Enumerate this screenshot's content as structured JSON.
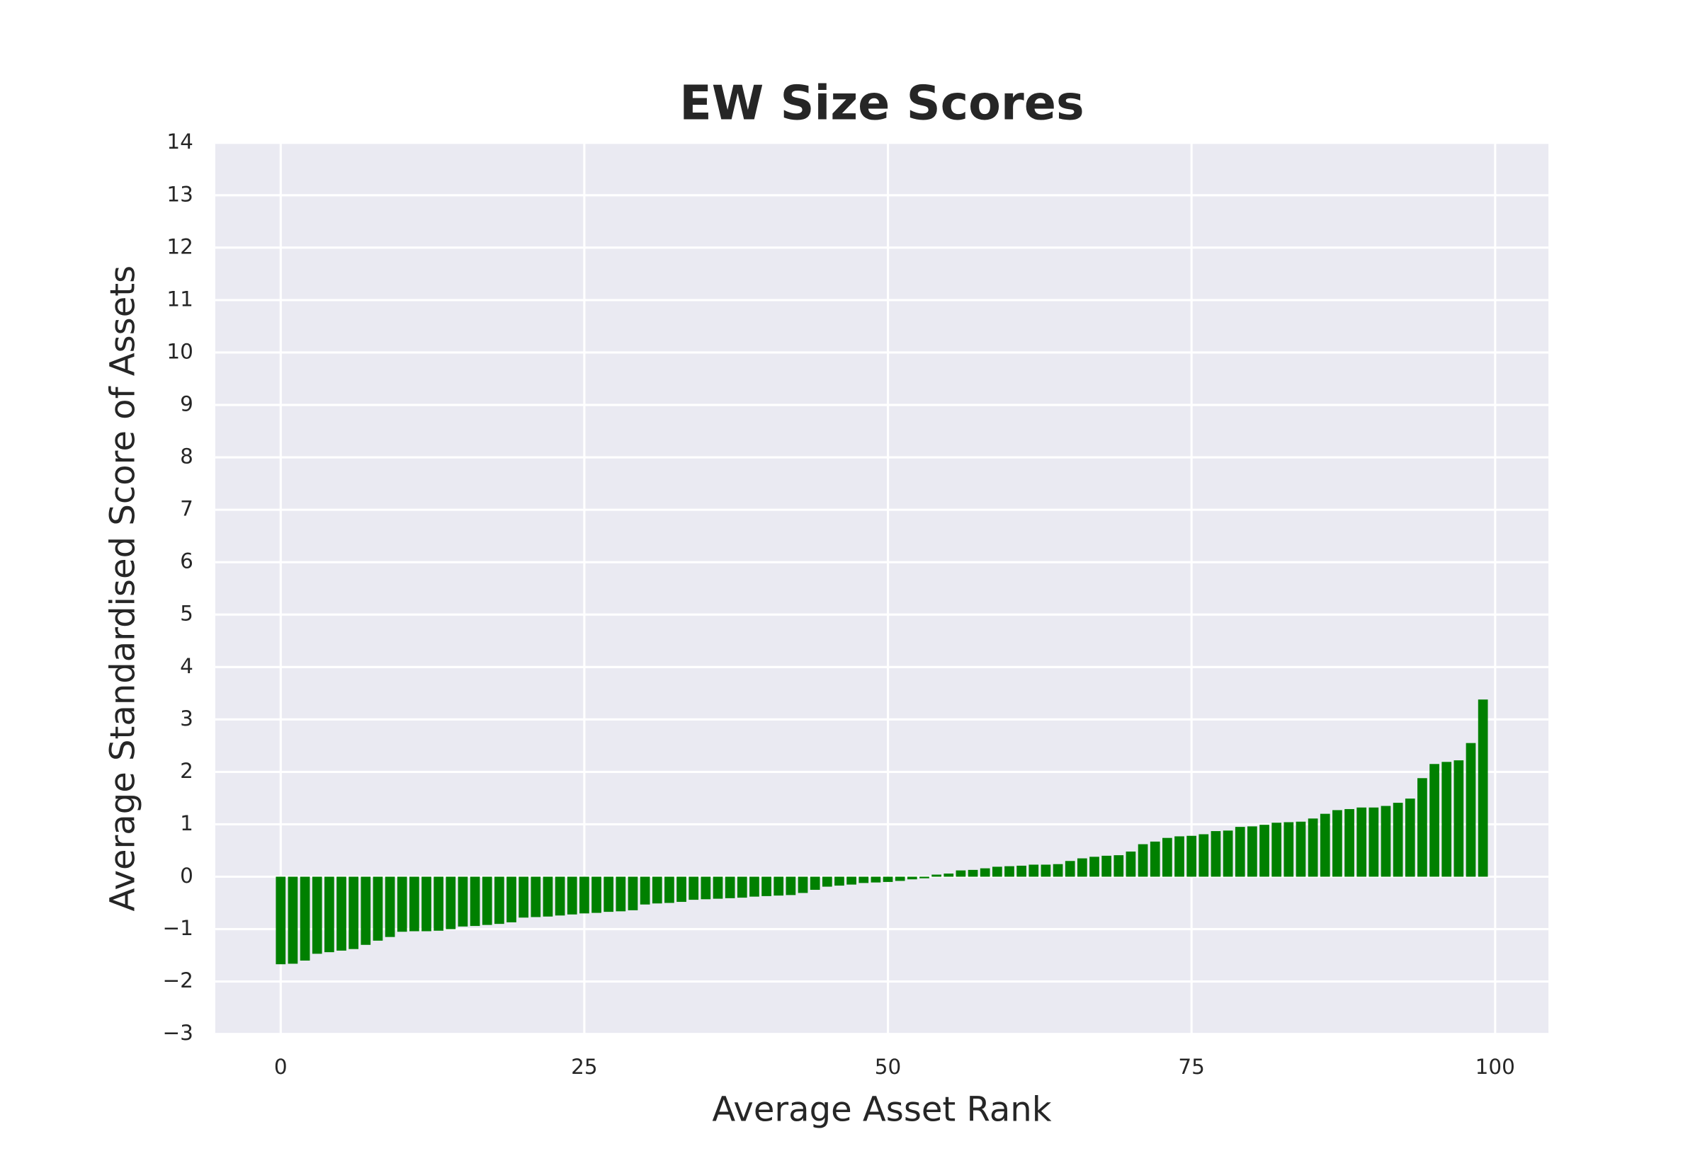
{
  "chart_data": {
    "type": "bar",
    "title": "EW Size Scores",
    "x_label": "Average Asset Rank",
    "y_label": "Average Standardised Score of Assets",
    "color": "#008000",
    "grid": true,
    "x": [
      0,
      1,
      2,
      3,
      4,
      5,
      6,
      7,
      8,
      9,
      10,
      11,
      12,
      13,
      14,
      15,
      16,
      17,
      18,
      19,
      20,
      21,
      22,
      23,
      24,
      25,
      26,
      27,
      28,
      29,
      30,
      31,
      32,
      33,
      34,
      35,
      36,
      37,
      38,
      39,
      40,
      41,
      42,
      43,
      44,
      45,
      46,
      47,
      48,
      49,
      50,
      51,
      52,
      53,
      54,
      55,
      56,
      57,
      58,
      59,
      60,
      61,
      62,
      63,
      64,
      65,
      66,
      67,
      68,
      69,
      70,
      71,
      72,
      73,
      74,
      75,
      76,
      77,
      78,
      79,
      80,
      81,
      82,
      83,
      84,
      85,
      86,
      87,
      88,
      89,
      90,
      91,
      92,
      93,
      94,
      95,
      96,
      97,
      98,
      99
    ],
    "values": [
      -1.67,
      -1.66,
      -1.6,
      -1.47,
      -1.44,
      -1.41,
      -1.38,
      -1.3,
      -1.22,
      -1.15,
      -1.05,
      -1.04,
      -1.04,
      -1.03,
      -1.0,
      -0.95,
      -0.94,
      -0.92,
      -0.9,
      -0.87,
      -0.78,
      -0.77,
      -0.76,
      -0.74,
      -0.72,
      -0.7,
      -0.69,
      -0.67,
      -0.66,
      -0.64,
      -0.53,
      -0.51,
      -0.5,
      -0.48,
      -0.44,
      -0.43,
      -0.42,
      -0.41,
      -0.4,
      -0.38,
      -0.37,
      -0.36,
      -0.35,
      -0.31,
      -0.25,
      -0.19,
      -0.17,
      -0.15,
      -0.12,
      -0.11,
      -0.1,
      -0.08,
      -0.05,
      -0.03,
      0.04,
      0.06,
      0.12,
      0.13,
      0.16,
      0.19,
      0.2,
      0.21,
      0.23,
      0.23,
      0.24,
      0.3,
      0.35,
      0.38,
      0.4,
      0.41,
      0.48,
      0.62,
      0.67,
      0.74,
      0.77,
      0.78,
      0.81,
      0.87,
      0.88,
      0.95,
      0.96,
      0.99,
      1.03,
      1.04,
      1.05,
      1.11,
      1.2,
      1.27,
      1.29,
      1.32,
      1.32,
      1.35,
      1.41,
      1.49,
      1.88,
      2.15,
      2.19,
      2.22,
      2.55,
      3.38
    ],
    "bar_width": 0.8,
    "xlim": [
      -5.39,
      104.39
    ],
    "xticks": [
      0,
      25,
      50,
      75,
      100
    ],
    "ylim": [
      -3,
      14
    ],
    "yticks": [
      {
        "value": -3,
        "label": "−3"
      },
      {
        "value": -2,
        "label": "−2"
      },
      {
        "value": -1,
        "label": "−1"
      },
      0,
      1,
      2,
      3,
      4,
      5,
      6,
      7,
      8,
      9,
      10,
      11,
      12,
      13,
      14
    ]
  }
}
